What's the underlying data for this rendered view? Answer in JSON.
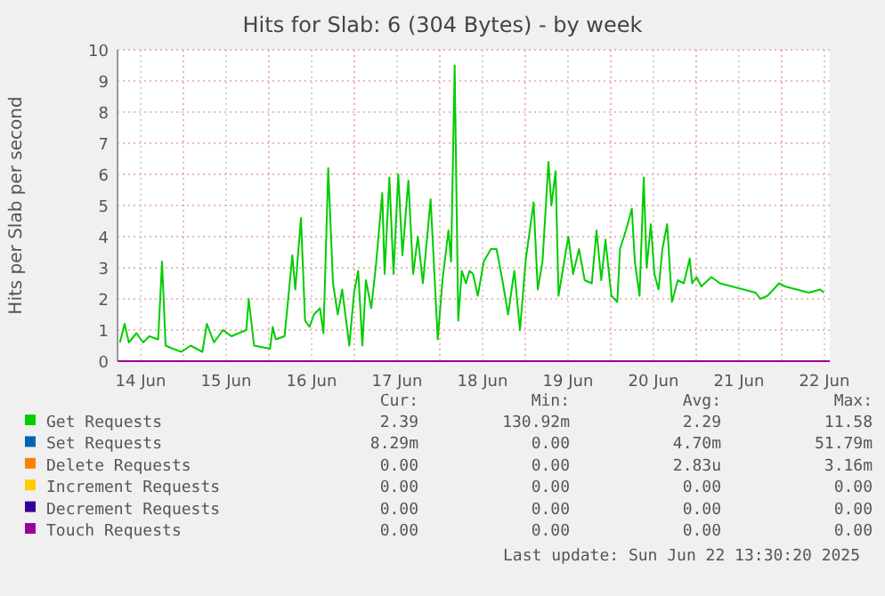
{
  "chart_data": {
    "type": "line",
    "title": "Hits for Slab: 6 (304 Bytes) - by week",
    "ylabel": "Hits per Slab per second",
    "xlim": [
      "2025-06-14T05:30",
      "2025-06-22T13:30"
    ],
    "xticks": [
      {
        "value": "2025-06-14T12:00",
        "label": "14 Jun"
      },
      {
        "value": "2025-06-15T00:00",
        "label": null
      },
      {
        "value": "2025-06-15T12:00",
        "label": "15 Jun"
      },
      {
        "value": "2025-06-16T00:00",
        "label": null
      },
      {
        "value": "2025-06-16T12:00",
        "label": "16 Jun"
      },
      {
        "value": "2025-06-17T00:00",
        "label": null
      },
      {
        "value": "2025-06-17T12:00",
        "label": "17 Jun"
      },
      {
        "value": "2025-06-18T00:00",
        "label": null
      },
      {
        "value": "2025-06-18T12:00",
        "label": "18 Jun"
      },
      {
        "value": "2025-06-19T00:00",
        "label": null
      },
      {
        "value": "2025-06-19T12:00",
        "label": "19 Jun"
      },
      {
        "value": "2025-06-20T00:00",
        "label": null
      },
      {
        "value": "2025-06-20T12:00",
        "label": "20 Jun"
      },
      {
        "value": "2025-06-21T00:00",
        "label": null
      },
      {
        "value": "2025-06-21T12:00",
        "label": "21 Jun"
      },
      {
        "value": "2025-06-22T00:00",
        "label": null
      },
      {
        "value": "2025-06-22T12:00",
        "label": "22 Jun"
      }
    ],
    "ylim": [
      0,
      10
    ],
    "yticks": [
      0,
      1,
      2,
      3,
      4,
      5,
      6,
      7,
      8,
      9,
      10
    ],
    "grid": true,
    "legend": "bottom",
    "series": [
      {
        "name": "Get Requests",
        "color": "#00cc00",
        "x": [
          "2025-06-14T06:10",
          "2025-06-14T07:30",
          "2025-06-14T08:40",
          "2025-06-14T10:50",
          "2025-06-14T12:40",
          "2025-06-14T14:25",
          "2025-06-14T16:55",
          "2025-06-14T18:00",
          "2025-06-14T19:00",
          "2025-06-14T21:00",
          "2025-06-14T23:30",
          "2025-06-15T02:00",
          "2025-06-15T05:20",
          "2025-06-15T06:35",
          "2025-06-15T08:35",
          "2025-06-15T11:05",
          "2025-06-15T13:30",
          "2025-06-15T17:40",
          "2025-06-15T18:20",
          "2025-06-15T19:50",
          "2025-06-16T00:20",
          "2025-06-16T01:05",
          "2025-06-16T01:55",
          "2025-06-16T04:25",
          "2025-06-16T06:35",
          "2025-06-16T07:25",
          "2025-06-16T09:00",
          "2025-06-16T10:10",
          "2025-06-16T11:25",
          "2025-06-16T12:40",
          "2025-06-16T14:20",
          "2025-06-16T15:20",
          "2025-06-16T16:40",
          "2025-06-16T18:00",
          "2025-06-16T19:20",
          "2025-06-16T20:35",
          "2025-06-16T22:35",
          "2025-06-16T23:55",
          "2025-06-17T01:05",
          "2025-06-17T02:15",
          "2025-06-17T03:15",
          "2025-06-17T04:45",
          "2025-06-17T06:10",
          "2025-06-17T07:50",
          "2025-06-17T08:30",
          "2025-06-17T09:50",
          "2025-06-17T11:00",
          "2025-06-17T12:20",
          "2025-06-17T13:30",
          "2025-06-17T15:10",
          "2025-06-17T16:30",
          "2025-06-17T17:50",
          "2025-06-17T19:15",
          "2025-06-17T21:25",
          "2025-06-17T23:25",
          "2025-06-18T00:45",
          "2025-06-18T02:25",
          "2025-06-18T03:10",
          "2025-06-18T04:10",
          "2025-06-18T05:10",
          "2025-06-18T06:10",
          "2025-06-18T07:20",
          "2025-06-18T08:20",
          "2025-06-18T09:20",
          "2025-06-18T10:40",
          "2025-06-18T12:20",
          "2025-06-18T14:20",
          "2025-06-18T15:55",
          "2025-06-18T17:35",
          "2025-06-18T19:10",
          "2025-06-18T20:55",
          "2025-06-18T22:30",
          "2025-06-19T00:10",
          "2025-06-19T01:30",
          "2025-06-19T02:20",
          "2025-06-19T03:30",
          "2025-06-19T04:50",
          "2025-06-19T06:30",
          "2025-06-19T07:20",
          "2025-06-19T08:30",
          "2025-06-19T09:20",
          "2025-06-19T10:55",
          "2025-06-19T12:05",
          "2025-06-19T13:25",
          "2025-06-19T15:05",
          "2025-06-19T16:40",
          "2025-06-19T18:40",
          "2025-06-19T20:00",
          "2025-06-19T21:20",
          "2025-06-19T22:30",
          "2025-06-20T00:10",
          "2025-06-20T01:50",
          "2025-06-20T02:35",
          "2025-06-20T04:15",
          "2025-06-20T05:55",
          "2025-06-20T06:45",
          "2025-06-20T08:05",
          "2025-06-20T09:15",
          "2025-06-20T10:05",
          "2025-06-20T11:15",
          "2025-06-20T12:15",
          "2025-06-20T13:25",
          "2025-06-20T14:30",
          "2025-06-20T15:50",
          "2025-06-20T17:10",
          "2025-06-20T18:50",
          "2025-06-20T20:30",
          "2025-06-20T22:10",
          "2025-06-20T22:50",
          "2025-06-21T00:05",
          "2025-06-21T01:25",
          "2025-06-21T04:15",
          "2025-06-21T06:40",
          "2025-06-21T10:00",
          "2025-06-21T13:20",
          "2025-06-21T16:40",
          "2025-06-21T18:00",
          "2025-06-21T20:00",
          "2025-06-21T21:40",
          "2025-06-21T23:15",
          "2025-06-22T00:55",
          "2025-06-22T04:15",
          "2025-06-22T07:35",
          "2025-06-22T10:50",
          "2025-06-22T11:50"
        ],
        "values": [
          0.6,
          1.2,
          0.6,
          0.9,
          0.6,
          0.8,
          0.7,
          3.2,
          0.5,
          0.4,
          0.3,
          0.5,
          0.3,
          1.2,
          0.6,
          1.0,
          0.8,
          1.0,
          2.0,
          0.5,
          0.4,
          1.1,
          0.7,
          0.8,
          3.4,
          2.3,
          4.6,
          1.3,
          1.1,
          1.5,
          1.7,
          0.9,
          6.2,
          2.5,
          1.5,
          2.3,
          0.5,
          2.2,
          2.9,
          0.5,
          2.6,
          1.7,
          3.2,
          5.4,
          2.8,
          5.9,
          2.8,
          6.0,
          3.4,
          5.8,
          2.8,
          4.0,
          2.5,
          5.2,
          0.7,
          2.6,
          4.2,
          3.2,
          9.5,
          1.3,
          2.9,
          2.5,
          2.9,
          2.8,
          2.1,
          3.2,
          3.6,
          3.6,
          2.6,
          1.5,
          2.9,
          1.0,
          3.3,
          4.4,
          5.1,
          2.3,
          3.2,
          6.4,
          5.0,
          6.1,
          2.1,
          3.2,
          4.0,
          2.8,
          3.6,
          2.6,
          2.5,
          4.2,
          2.6,
          3.9,
          2.1,
          1.9,
          3.6,
          4.2,
          4.9,
          3.2,
          2.1,
          5.9,
          3.0,
          4.4,
          2.8,
          2.3,
          3.6,
          4.4,
          1.9,
          2.6,
          2.5,
          3.3,
          2.5,
          2.7,
          2.4,
          2.7,
          2.5,
          2.4,
          2.3,
          2.2,
          2.0,
          2.1,
          2.3,
          2.5,
          2.4,
          2.3,
          2.2,
          2.3,
          2.2
        ]
      },
      {
        "name": "Set Requests",
        "color": "#0066b3"
      },
      {
        "name": "Delete Requests",
        "color": "#ff8000"
      },
      {
        "name": "Increment Requests",
        "color": "#ffcc00"
      },
      {
        "name": "Decrement Requests",
        "color": "#330099"
      },
      {
        "name": "Touch Requests",
        "color": "#990099",
        "x": [
          "2025-06-14T05:30",
          "2025-06-22T13:30"
        ],
        "values": [
          0,
          0
        ]
      }
    ],
    "annotations": [
      "Cur:",
      "Min:",
      "Avg:",
      "Max:",
      "2.39",
      "130.92m",
      "2.29",
      "11.58",
      "8.29m",
      "0.00",
      "4.70m",
      "51.79m",
      "0.00",
      "0.00",
      "2.83u",
      "3.16m",
      "0.00",
      "0.00",
      "0.00",
      "0.00",
      "0.00",
      "0.00",
      "0.00",
      "0.00",
      "0.00",
      "0.00",
      "0.00",
      "0.00",
      "Last update: Sun Jun 22 13:30:20 2025"
    ]
  }
}
